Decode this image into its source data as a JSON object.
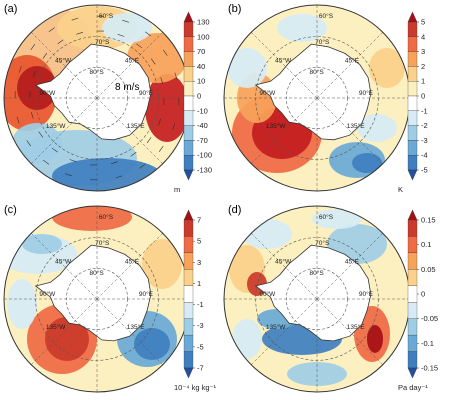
{
  "figure": {
    "panels": [
      {
        "id": "a",
        "label": "(a)",
        "geo_labels": [
          "60°S",
          "70°S",
          "80°S",
          "45°W",
          "45°E",
          "90°W",
          "90°E",
          "135°W",
          "135°E"
        ],
        "vector_scale_label": "8 m/s",
        "colorbar": {
          "ticks": [
            "130",
            "100",
            "70",
            "40",
            "10",
            "0",
            "-10",
            "-40",
            "-70",
            "-100",
            "-130"
          ],
          "unit": "m",
          "colors": [
            "#a50f15",
            "#cb3a2a",
            "#ef6a45",
            "#f7a25a",
            "#fbd08a",
            "#fdf0c0",
            "#ffffff",
            "#d6ebf5",
            "#9fcde6",
            "#6aa9d6",
            "#3f7fc0",
            "#234f9e"
          ]
        }
      },
      {
        "id": "b",
        "label": "(b)",
        "geo_labels": [
          "60°S",
          "70°S",
          "80°S",
          "45°W",
          "45°E",
          "90°W",
          "90°E",
          "135°W",
          "135°E"
        ],
        "colorbar": {
          "ticks": [
            "5",
            "4",
            "3",
            "2",
            "1",
            "0",
            "-1",
            "-2",
            "-3",
            "-4",
            "-5"
          ],
          "unit": "K",
          "colors": [
            "#a50f15",
            "#cb3a2a",
            "#ef6a45",
            "#f7a25a",
            "#fbd08a",
            "#fdf0c0",
            "#ffffff",
            "#d6ebf5",
            "#9fcde6",
            "#6aa9d6",
            "#3f7fc0",
            "#234f9e"
          ]
        }
      },
      {
        "id": "c",
        "label": "(c)",
        "geo_labels": [
          "60°S",
          "70°S",
          "80°S",
          "45°W",
          "45°E",
          "90°W",
          "90°E",
          "135°W",
          "135°E"
        ],
        "colorbar": {
          "ticks": [
            "7",
            "5",
            "3",
            "1",
            "-1",
            "-3",
            "-5",
            "-7"
          ],
          "unit": "10⁻⁴ kg kg⁻¹",
          "colors": [
            "#a50f15",
            "#cb3a2a",
            "#ef6a45",
            "#f7a25a",
            "#fbd08a",
            "#ffffff",
            "#d6ebf5",
            "#9fcde6",
            "#6aa9d6",
            "#3f7fc0",
            "#234f9e"
          ]
        }
      },
      {
        "id": "d",
        "label": "(d)",
        "geo_labels": [
          "60°S",
          "70°S",
          "80°S",
          "45°W",
          "45°E",
          "90°W",
          "90°E",
          "135°W",
          "135°E"
        ],
        "colorbar": {
          "ticks": [
            "0.15",
            "0.1",
            "0.05",
            "0",
            "-0.05",
            "-0.1",
            "-0.15"
          ],
          "unit": "Pa day⁻¹",
          "colors": [
            "#a50f15",
            "#cb3a2a",
            "#ef6a45",
            "#f7a25a",
            "#fbd08a",
            "#ffffff",
            "#d6ebf5",
            "#9fcde6",
            "#6aa9d6",
            "#3f7fc0",
            "#234f9e"
          ]
        }
      }
    ]
  },
  "chart_data": [
    {
      "type": "heatmap",
      "panel": "(a)",
      "colorbar_unit": "m",
      "colorbar_ticks": [
        -130,
        -100,
        -70,
        -40,
        -10,
        0,
        10,
        40,
        70,
        100,
        130
      ],
      "colorbar_range": [
        -130,
        130
      ],
      "features": [
        {
          "sign": "positive",
          "approx_value": 130,
          "location": "near 90°E, 60–70°S"
        },
        {
          "sign": "positive",
          "approx_value": 100,
          "location": "near 90°W–135°W, 60–70°S"
        },
        {
          "sign": "negative",
          "approx_value": -130,
          "location": "near 180°, 60°S (bottom)"
        },
        {
          "sign": "negative",
          "approx_value": -70,
          "location": "45°W–60°W, 50°S"
        }
      ],
      "vector_reference": "8 m/s"
    },
    {
      "type": "heatmap",
      "panel": "(b)",
      "colorbar_unit": "K",
      "colorbar_ticks": [
        -5,
        -4,
        -3,
        -2,
        -1,
        0,
        1,
        2,
        3,
        4,
        5
      ],
      "colorbar_range": [
        -5,
        5
      ],
      "features": [
        {
          "sign": "positive",
          "approx_value": 5,
          "location": "135°W, 65–75°S (Amundsen–Bellingshausen)"
        },
        {
          "sign": "negative",
          "approx_value": -4,
          "location": "150°E, 60°S"
        },
        {
          "sign": "negative",
          "approx_value": -2,
          "location": "45°W, 55°S"
        }
      ]
    },
    {
      "type": "heatmap",
      "panel": "(c)",
      "colorbar_unit": "10^-4 kg kg^-1",
      "colorbar_ticks": [
        -7,
        -5,
        -3,
        -1,
        1,
        3,
        5,
        7
      ],
      "colorbar_range": [
        -7,
        7
      ],
      "features": [
        {
          "sign": "positive",
          "approx_value": 7,
          "location": "135°W, 65–70°S"
        },
        {
          "sign": "positive",
          "approx_value": 5,
          "location": "0°, 55–60°S (top)"
        },
        {
          "sign": "negative",
          "approx_value": -7,
          "location": "150°E, 60–65°S"
        },
        {
          "sign": "negative",
          "approx_value": -3,
          "location": "45°W, 55°S"
        }
      ]
    },
    {
      "type": "heatmap",
      "panel": "(d)",
      "colorbar_unit": "Pa day^-1",
      "colorbar_ticks": [
        -0.15,
        -0.1,
        -0.05,
        0,
        0.05,
        0.1,
        0.15
      ],
      "colorbar_range": [
        -0.15,
        0.15
      ],
      "features": [
        {
          "sign": "positive",
          "approx_value": 0.15,
          "location": "150°E, 65°S coast"
        },
        {
          "sign": "positive",
          "approx_value": 0.1,
          "location": "Antarctic Peninsula, 60°W"
        },
        {
          "sign": "negative",
          "approx_value": -0.15,
          "location": "135°W, 70°S coast"
        },
        {
          "sign": "negative",
          "approx_value": -0.1,
          "location": "45°E, 60°S"
        }
      ]
    }
  ]
}
